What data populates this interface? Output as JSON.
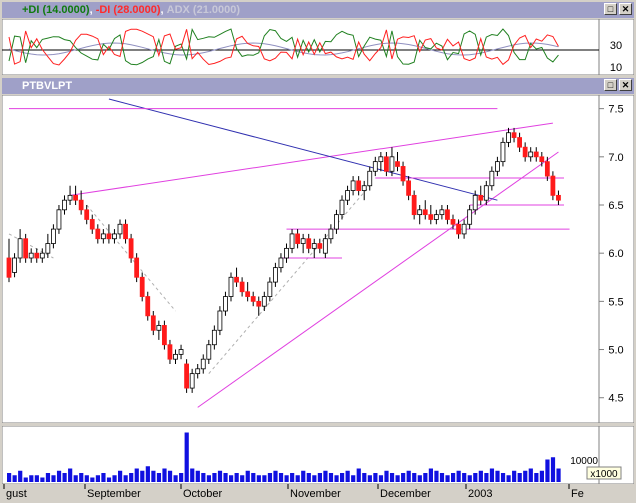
{
  "indicator_pane": {
    "di_plus_label": "+DI (14.0000)",
    "di_minus_label": "-DI (28.0000)",
    "adx_label": "ADX (21.0000)",
    "separator": ",",
    "y_ticks": [
      "30",
      "10"
    ]
  },
  "price_pane": {
    "symbol": "PTBVLPT",
    "y_ticks": [
      "7.5",
      "7.0",
      "6.5",
      "6.0",
      "5.5",
      "5.0",
      "4.5"
    ]
  },
  "volume_pane": {
    "y_tick": "10000",
    "scale_label": "x1000"
  },
  "window_buttons": [
    "□",
    "✕"
  ],
  "colors": {
    "up_candle": "#ffffff",
    "down_candle": "#ff1a1a",
    "trendline_magenta": "#e040e0",
    "trendline_blue": "#3030b0",
    "volume": "#1010e0",
    "di_plus": "#208020",
    "di_minus": "#ff2020"
  },
  "chart_data": {
    "type": "candlestick",
    "x_tick_labels": [
      "gust",
      "September",
      "October",
      "November",
      "December",
      "2003",
      "Fe"
    ],
    "ylim": [
      4.3,
      7.6
    ],
    "series": [
      {
        "name": "PTBVLPT",
        "values": [
          [
            5.95,
            6.15,
            5.7,
            5.75
          ],
          [
            5.8,
            6.0,
            5.75,
            5.95
          ],
          [
            5.95,
            6.25,
            5.9,
            6.15
          ],
          [
            6.15,
            6.2,
            5.9,
            5.95
          ],
          [
            5.95,
            6.05,
            5.9,
            6.0
          ],
          [
            6.0,
            6.05,
            5.9,
            5.95
          ],
          [
            5.95,
            6.05,
            5.9,
            6.0
          ],
          [
            6.0,
            6.2,
            5.95,
            6.1
          ],
          [
            6.1,
            6.3,
            6.05,
            6.25
          ],
          [
            6.25,
            6.5,
            6.2,
            6.45
          ],
          [
            6.45,
            6.6,
            6.4,
            6.55
          ],
          [
            6.55,
            6.7,
            6.5,
            6.6
          ],
          [
            6.6,
            6.7,
            6.5,
            6.55
          ],
          [
            6.55,
            6.65,
            6.4,
            6.45
          ],
          [
            6.45,
            6.5,
            6.3,
            6.35
          ],
          [
            6.35,
            6.4,
            6.2,
            6.25
          ],
          [
            6.25,
            6.3,
            6.1,
            6.15
          ],
          [
            6.15,
            6.25,
            6.1,
            6.2
          ],
          [
            6.2,
            6.3,
            6.1,
            6.15
          ],
          [
            6.15,
            6.25,
            6.1,
            6.2
          ],
          [
            6.2,
            6.35,
            6.15,
            6.3
          ],
          [
            6.3,
            6.35,
            6.1,
            6.15
          ],
          [
            6.15,
            6.2,
            5.9,
            5.95
          ],
          [
            5.95,
            6.0,
            5.7,
            5.75
          ],
          [
            5.75,
            5.8,
            5.5,
            5.55
          ],
          [
            5.55,
            5.6,
            5.3,
            5.35
          ],
          [
            5.35,
            5.4,
            5.15,
            5.2
          ],
          [
            5.2,
            5.3,
            5.1,
            5.25
          ],
          [
            5.25,
            5.3,
            5.0,
            5.05
          ],
          [
            5.05,
            5.1,
            4.85,
            4.9
          ],
          [
            4.9,
            5.0,
            4.85,
            4.95
          ],
          [
            4.95,
            5.05,
            4.9,
            5.0
          ],
          [
            4.85,
            4.9,
            4.55,
            4.6
          ],
          [
            4.6,
            4.8,
            4.55,
            4.75
          ],
          [
            4.75,
            4.85,
            4.7,
            4.8
          ],
          [
            4.8,
            4.95,
            4.75,
            4.9
          ],
          [
            4.9,
            5.1,
            4.85,
            5.05
          ],
          [
            5.05,
            5.25,
            5.0,
            5.2
          ],
          [
            5.2,
            5.45,
            5.15,
            5.4
          ],
          [
            5.4,
            5.6,
            5.35,
            5.55
          ],
          [
            5.55,
            5.8,
            5.5,
            5.75
          ],
          [
            5.75,
            5.85,
            5.65,
            5.7
          ],
          [
            5.7,
            5.75,
            5.55,
            5.6
          ],
          [
            5.6,
            5.7,
            5.5,
            5.55
          ],
          [
            5.55,
            5.6,
            5.45,
            5.5
          ],
          [
            5.5,
            5.55,
            5.35,
            5.45
          ],
          [
            5.45,
            5.6,
            5.4,
            5.55
          ],
          [
            5.55,
            5.75,
            5.5,
            5.7
          ],
          [
            5.7,
            5.9,
            5.65,
            5.85
          ],
          [
            5.85,
            6.0,
            5.8,
            5.95
          ],
          [
            5.95,
            6.1,
            5.9,
            6.05
          ],
          [
            6.05,
            6.25,
            6.0,
            6.2
          ],
          [
            6.2,
            6.25,
            6.05,
            6.1
          ],
          [
            6.1,
            6.2,
            6.0,
            6.15
          ],
          [
            6.15,
            6.2,
            6.0,
            6.05
          ],
          [
            6.05,
            6.15,
            5.95,
            6.1
          ],
          [
            6.1,
            6.15,
            6.0,
            6.05
          ],
          [
            6.0,
            6.2,
            5.95,
            6.15
          ],
          [
            6.15,
            6.3,
            6.1,
            6.25
          ],
          [
            6.25,
            6.45,
            6.2,
            6.4
          ],
          [
            6.4,
            6.6,
            6.35,
            6.55
          ],
          [
            6.55,
            6.7,
            6.5,
            6.65
          ],
          [
            6.65,
            6.8,
            6.6,
            6.75
          ],
          [
            6.75,
            6.8,
            6.6,
            6.65
          ],
          [
            6.65,
            6.75,
            6.55,
            6.7
          ],
          [
            6.7,
            6.9,
            6.65,
            6.85
          ],
          [
            6.85,
            7.0,
            6.8,
            6.95
          ],
          [
            6.95,
            7.05,
            6.85,
            7.0
          ],
          [
            7.0,
            7.05,
            6.8,
            6.85
          ],
          [
            6.85,
            7.1,
            6.8,
            7.0
          ],
          [
            6.95,
            7.05,
            6.85,
            6.9
          ],
          [
            6.9,
            6.95,
            6.7,
            6.75
          ],
          [
            6.75,
            6.8,
            6.55,
            6.6
          ],
          [
            6.6,
            6.65,
            6.35,
            6.4
          ],
          [
            6.4,
            6.5,
            6.3,
            6.45
          ],
          [
            6.45,
            6.55,
            6.35,
            6.4
          ],
          [
            6.4,
            6.5,
            6.3,
            6.35
          ],
          [
            6.35,
            6.45,
            6.3,
            6.4
          ],
          [
            6.4,
            6.5,
            6.35,
            6.45
          ],
          [
            6.45,
            6.5,
            6.3,
            6.35
          ],
          [
            6.35,
            6.4,
            6.25,
            6.3
          ],
          [
            6.3,
            6.35,
            6.15,
            6.2
          ],
          [
            6.2,
            6.35,
            6.15,
            6.3
          ],
          [
            6.3,
            6.5,
            6.25,
            6.45
          ],
          [
            6.45,
            6.65,
            6.4,
            6.6
          ],
          [
            6.6,
            6.7,
            6.5,
            6.55
          ],
          [
            6.55,
            6.75,
            6.5,
            6.7
          ],
          [
            6.7,
            6.9,
            6.65,
            6.85
          ],
          [
            6.85,
            7.0,
            6.8,
            6.95
          ],
          [
            6.95,
            7.2,
            6.9,
            7.15
          ],
          [
            7.15,
            7.3,
            7.1,
            7.25
          ],
          [
            7.25,
            7.3,
            7.15,
            7.2
          ],
          [
            7.2,
            7.25,
            7.05,
            7.1
          ],
          [
            7.1,
            7.15,
            6.95,
            7.0
          ],
          [
            7.0,
            7.1,
            6.95,
            7.05
          ],
          [
            7.05,
            7.1,
            6.95,
            7.0
          ],
          [
            7.0,
            7.05,
            6.9,
            6.95
          ],
          [
            6.95,
            7.0,
            6.75,
            6.8
          ],
          [
            6.8,
            6.85,
            6.55,
            6.6
          ],
          [
            6.6,
            6.65,
            6.5,
            6.55
          ]
        ]
      }
    ],
    "volume": [
      4,
      3,
      5,
      2,
      3,
      3,
      2,
      4,
      3,
      5,
      4,
      6,
      3,
      4,
      3,
      2,
      3,
      4,
      2,
      3,
      5,
      3,
      4,
      6,
      5,
      7,
      5,
      4,
      6,
      5,
      3,
      4,
      22,
      6,
      5,
      4,
      3,
      4,
      5,
      4,
      3,
      4,
      3,
      5,
      4,
      3,
      3,
      4,
      5,
      4,
      3,
      4,
      3,
      5,
      4,
      3,
      4,
      5,
      4,
      3,
      4,
      5,
      3,
      6,
      4,
      3,
      4,
      3,
      5,
      4,
      3,
      4,
      5,
      4,
      3,
      4,
      6,
      5,
      4,
      3,
      4,
      5,
      4,
      3,
      4,
      5,
      4,
      6,
      5,
      4,
      3,
      5,
      4,
      5,
      6,
      4,
      5,
      10,
      11,
      6
    ],
    "trendlines": [
      {
        "name": "upper-channel",
        "from": [
          11,
          6.6
        ],
        "to": [
          98,
          7.35
        ]
      },
      {
        "name": "rising-support",
        "from": [
          34,
          4.4
        ],
        "to": [
          99,
          7.05
        ]
      },
      {
        "name": "falling-blue",
        "from": [
          18,
          7.6
        ],
        "to": [
          88,
          6.55
        ]
      },
      {
        "name": "resistance-top",
        "from": [
          0,
          7.5
        ],
        "to": [
          88,
          7.5
        ]
      },
      {
        "name": "support-low",
        "from": [
          50,
          6.25
        ],
        "to": [
          101,
          6.25
        ]
      },
      {
        "name": "support-mid",
        "from": [
          66,
          6.78
        ],
        "to": [
          100,
          6.78
        ]
      },
      {
        "name": "support-recent",
        "from": [
          83,
          6.5
        ],
        "to": [
          100,
          6.5
        ]
      },
      {
        "name": "hline-6",
        "from": [
          49,
          5.95
        ],
        "to": [
          60,
          5.95
        ]
      }
    ]
  }
}
